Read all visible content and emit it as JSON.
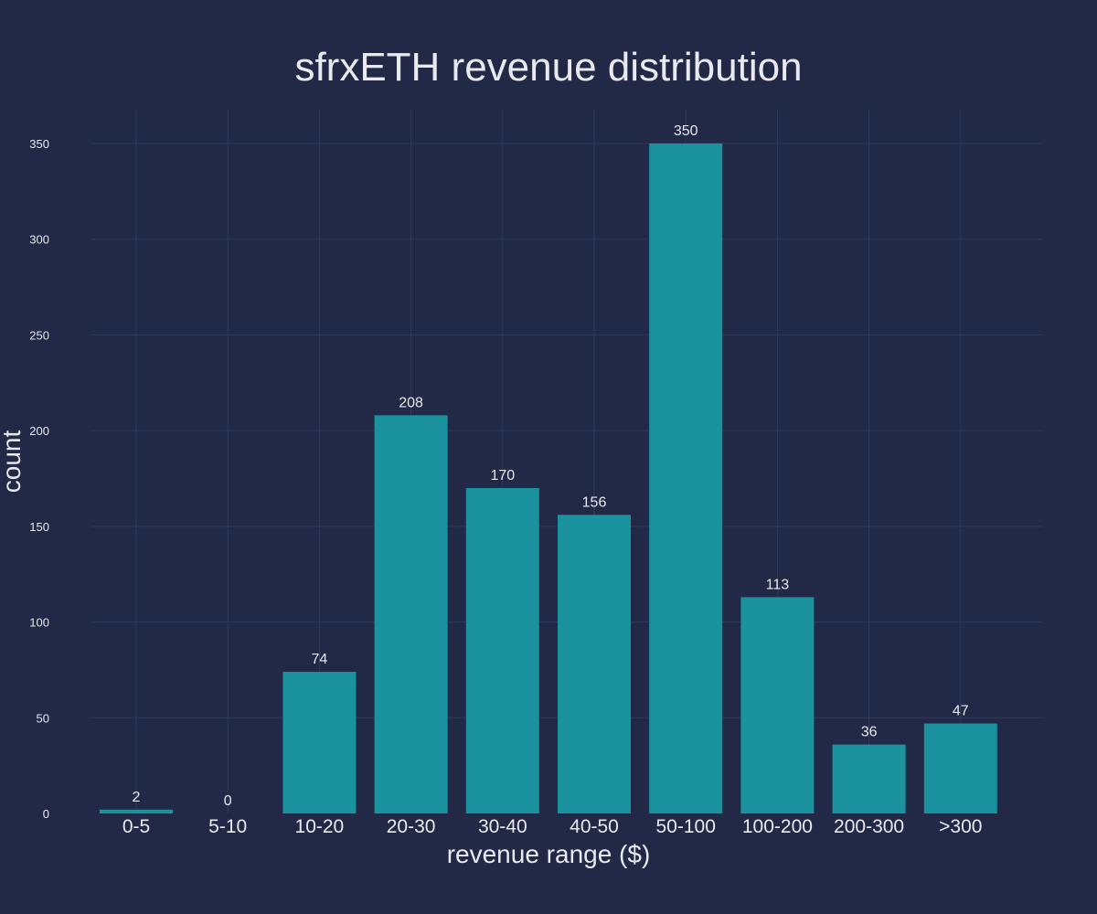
{
  "chart_data": {
    "type": "bar",
    "title": "sfrxETH revenue distribution",
    "xlabel": "revenue range ($)",
    "ylabel": "count",
    "categories": [
      "0-5",
      "5-10",
      "10-20",
      "20-30",
      "30-40",
      "40-50",
      "50-100",
      "100-200",
      "200-300",
      ">300"
    ],
    "values": [
      2,
      0,
      74,
      208,
      170,
      156,
      350,
      113,
      36,
      47
    ],
    "data_labels": [
      "2",
      "0",
      "74",
      "208",
      "170",
      "156",
      "350",
      "113",
      "36",
      "47"
    ],
    "yticks": [
      0,
      50,
      100,
      150,
      200,
      250,
      300,
      350
    ],
    "ylim": [
      0,
      350
    ],
    "grid": true,
    "legend": "none",
    "colors": {
      "background": "#222947",
      "bar": "#1a939e",
      "grid": "#2d3a5c",
      "text": "#e9e9ee"
    }
  }
}
